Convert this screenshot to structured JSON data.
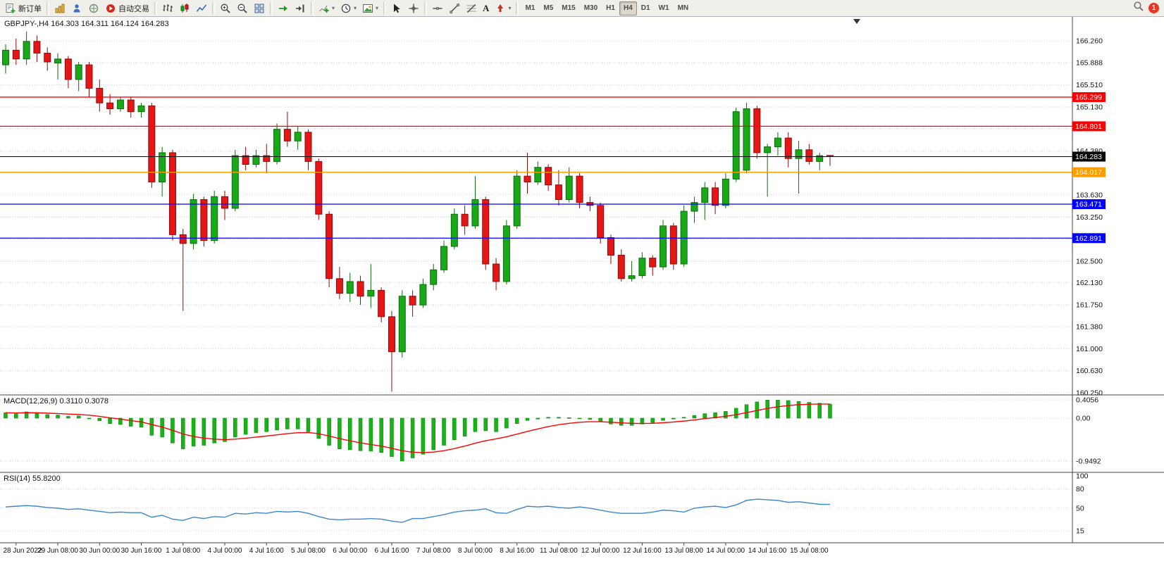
{
  "toolbar": {
    "new_order": "新订单",
    "auto_trading": "自动交易",
    "text_tool": "A",
    "timeframes": [
      "M1",
      "M5",
      "M15",
      "M30",
      "H1",
      "H4",
      "D1",
      "W1",
      "MN"
    ],
    "active_timeframe": "H4",
    "notification_count": "1"
  },
  "chart": {
    "title": "GBPJPY-,H4 164.303 164.311 164.124 164.283",
    "symbol": "GBPJPY-",
    "period": "H4",
    "open": "164.303",
    "high": "164.311",
    "low": "164.124",
    "close": "164.283"
  },
  "macd": {
    "label": "MACD(12,26,9) 0.3110 0.3078",
    "scale": [
      "0.4056",
      "0.00",
      "-0.9492"
    ]
  },
  "rsi": {
    "label": "RSI(14) 55.8200",
    "scale": [
      "100",
      "80",
      "50",
      "15"
    ]
  },
  "price_scale": [
    "166.260",
    "165.888",
    "165.510",
    "165.130",
    "164.760",
    "164.380",
    "164.000",
    "163.630",
    "163.250",
    "162.880",
    "162.500",
    "162.130",
    "161.750",
    "161.380",
    "161.000",
    "160.630",
    "160.250"
  ],
  "hlines": [
    {
      "price": "165.299",
      "color": "#ff0000"
    },
    {
      "price": "164.801",
      "color": "#ff0000"
    },
    {
      "price": "164.283",
      "color": "#000000"
    },
    {
      "price": "164.017",
      "color": "#ff9d00"
    },
    {
      "price": "163.471",
      "color": "#0000ff"
    },
    {
      "price": "162.891",
      "color": "#0000ff"
    }
  ],
  "time_axis": [
    "28 Jun 2022",
    "29 Jun 08:00",
    "30 Jun 00:00",
    "30 Jun 16:00",
    "1 Jul 08:00",
    "4 Jul 00:00",
    "4 Jul 16:00",
    "5 Jul 08:00",
    "6 Jul 00:00",
    "6 Jul 16:00",
    "7 Jul 08:00",
    "8 Jul 00:00",
    "8 Jul 16:00",
    "11 Jul 08:00",
    "12 Jul 00:00",
    "12 Jul 16:00",
    "13 Jul 08:00",
    "14 Jul 00:00",
    "14 Jul 16:00",
    "15 Jul 08:00"
  ],
  "colors": {
    "bull": "#18a818",
    "bull_border": "#0b6e0b",
    "bear": "#e41616",
    "bear_border": "#8f0a0a",
    "macd_hist": "#17b317",
    "macd_hist_border": "#0a7a0a",
    "macd_signal": "#ff0000",
    "rsi_line": "#3e86ca",
    "grid": "#cfcfcf",
    "axis": "#444444",
    "scale_text": "#111111",
    "badge": "#e8351f"
  },
  "chart_data": {
    "type": "candlestick",
    "title": "GBPJPY- H4",
    "y_range": [
      160.25,
      166.26
    ],
    "candles_ohlc": [
      [
        165.85,
        166.2,
        165.7,
        166.1
      ],
      [
        166.1,
        166.3,
        165.85,
        165.95
      ],
      [
        165.95,
        166.42,
        165.85,
        166.25
      ],
      [
        166.25,
        166.35,
        165.9,
        166.05
      ],
      [
        166.05,
        166.15,
        165.75,
        165.9
      ],
      [
        165.88,
        166.05,
        165.6,
        165.95
      ],
      [
        165.95,
        166.0,
        165.45,
        165.6
      ],
      [
        165.6,
        165.9,
        165.4,
        165.85
      ],
      [
        165.85,
        165.9,
        165.3,
        165.45
      ],
      [
        165.45,
        165.6,
        165.05,
        165.2
      ],
      [
        165.2,
        165.35,
        165.0,
        165.1
      ],
      [
        165.1,
        165.3,
        165.05,
        165.25
      ],
      [
        165.25,
        165.3,
        164.95,
        165.05
      ],
      [
        165.05,
        165.2,
        164.95,
        165.15
      ],
      [
        165.15,
        165.2,
        163.75,
        163.85
      ],
      [
        163.85,
        164.45,
        163.6,
        164.35
      ],
      [
        164.35,
        164.4,
        162.85,
        162.95
      ],
      [
        162.95,
        163.05,
        161.65,
        162.8
      ],
      [
        162.8,
        163.65,
        162.7,
        163.55
      ],
      [
        163.55,
        163.6,
        162.75,
        162.85
      ],
      [
        162.85,
        163.7,
        162.8,
        163.6
      ],
      [
        163.6,
        163.7,
        163.2,
        163.4
      ],
      [
        163.4,
        164.4,
        163.35,
        164.3
      ],
      [
        164.3,
        164.45,
        164.05,
        164.15
      ],
      [
        164.15,
        164.4,
        164.1,
        164.3
      ],
      [
        164.3,
        164.5,
        164.0,
        164.2
      ],
      [
        164.2,
        164.85,
        164.15,
        164.75
      ],
      [
        164.75,
        165.05,
        164.45,
        164.55
      ],
      [
        164.55,
        164.8,
        164.4,
        164.7
      ],
      [
        164.7,
        164.75,
        164.05,
        164.2
      ],
      [
        164.2,
        164.25,
        163.2,
        163.3
      ],
      [
        163.3,
        163.35,
        162.05,
        162.2
      ],
      [
        162.2,
        162.4,
        161.85,
        161.95
      ],
      [
        161.95,
        162.3,
        161.8,
        162.15
      ],
      [
        162.15,
        162.25,
        161.75,
        161.9
      ],
      [
        161.9,
        162.45,
        161.7,
        162.0
      ],
      [
        162.0,
        162.05,
        161.45,
        161.55
      ],
      [
        161.55,
        161.65,
        160.27,
        160.95
      ],
      [
        160.95,
        162.0,
        160.85,
        161.9
      ],
      [
        161.9,
        162.0,
        161.55,
        161.75
      ],
      [
        161.75,
        162.2,
        161.7,
        162.1
      ],
      [
        162.1,
        162.45,
        162.0,
        162.35
      ],
      [
        162.35,
        162.85,
        162.3,
        162.75
      ],
      [
        162.75,
        163.4,
        162.7,
        163.3
      ],
      [
        163.3,
        163.45,
        162.95,
        163.1
      ],
      [
        163.1,
        163.95,
        163.05,
        163.55
      ],
      [
        163.55,
        163.6,
        162.35,
        162.45
      ],
      [
        162.45,
        162.55,
        162.0,
        162.15
      ],
      [
        162.15,
        163.2,
        162.1,
        163.1
      ],
      [
        163.1,
        164.05,
        163.05,
        163.95
      ],
      [
        163.95,
        164.35,
        163.65,
        163.85
      ],
      [
        163.85,
        164.2,
        163.8,
        164.1
      ],
      [
        164.1,
        164.15,
        163.7,
        163.8
      ],
      [
        163.8,
        164.05,
        163.45,
        163.55
      ],
      [
        163.55,
        164.1,
        163.5,
        163.95
      ],
      [
        163.95,
        164.0,
        163.4,
        163.5
      ],
      [
        163.5,
        163.6,
        163.35,
        163.45
      ],
      [
        163.45,
        163.5,
        162.8,
        162.9
      ],
      [
        162.9,
        162.95,
        162.45,
        162.6
      ],
      [
        162.6,
        162.7,
        162.15,
        162.2
      ],
      [
        162.2,
        162.5,
        162.15,
        162.25
      ],
      [
        162.25,
        162.65,
        162.2,
        162.55
      ],
      [
        162.55,
        162.6,
        162.25,
        162.4
      ],
      [
        162.4,
        163.2,
        162.35,
        163.1
      ],
      [
        163.1,
        163.15,
        162.35,
        162.45
      ],
      [
        162.45,
        163.45,
        162.4,
        163.35
      ],
      [
        163.35,
        163.6,
        163.15,
        163.5
      ],
      [
        163.5,
        163.85,
        163.2,
        163.75
      ],
      [
        163.75,
        163.85,
        163.3,
        163.45
      ],
      [
        163.45,
        164.0,
        163.4,
        163.9
      ],
      [
        163.9,
        165.12,
        163.85,
        165.05
      ],
      [
        164.05,
        165.2,
        164.0,
        165.1
      ],
      [
        165.1,
        165.15,
        164.25,
        164.35
      ],
      [
        164.35,
        164.5,
        163.6,
        164.45
      ],
      [
        164.45,
        164.7,
        164.3,
        164.6
      ],
      [
        164.6,
        164.7,
        164.1,
        164.25
      ],
      [
        164.25,
        164.55,
        163.65,
        164.4
      ],
      [
        164.4,
        164.5,
        164.15,
        164.2
      ],
      [
        164.2,
        164.35,
        164.05,
        164.3
      ],
      [
        164.303,
        164.311,
        164.124,
        164.283
      ]
    ],
    "macd_hist": [
      0.12,
      0.1,
      0.14,
      0.11,
      0.08,
      0.07,
      0.04,
      0.05,
      0.0,
      -0.06,
      -0.12,
      -0.14,
      -0.18,
      -0.2,
      -0.38,
      -0.42,
      -0.55,
      -0.68,
      -0.62,
      -0.6,
      -0.55,
      -0.52,
      -0.42,
      -0.36,
      -0.32,
      -0.3,
      -0.26,
      -0.24,
      -0.24,
      -0.3,
      -0.45,
      -0.6,
      -0.68,
      -0.7,
      -0.72,
      -0.73,
      -0.76,
      -0.85,
      -0.95,
      -0.88,
      -0.8,
      -0.7,
      -0.6,
      -0.48,
      -0.4,
      -0.3,
      -0.28,
      -0.3,
      -0.22,
      -0.12,
      -0.05,
      -0.02,
      0.02,
      0.02,
      0.01,
      0.0,
      -0.03,
      -0.08,
      -0.13,
      -0.16,
      -0.16,
      -0.13,
      -0.1,
      -0.05,
      -0.02,
      0.02,
      0.06,
      0.1,
      0.12,
      0.15,
      0.22,
      0.3,
      0.36,
      0.4,
      0.4,
      0.39,
      0.37,
      0.35,
      0.33,
      0.311
    ],
    "rsi_values": [
      52,
      53,
      54,
      53,
      51,
      50,
      48,
      49,
      47,
      45,
      43,
      44,
      43,
      43,
      36,
      39,
      33,
      31,
      36,
      34,
      37,
      36,
      42,
      41,
      43,
      42,
      45,
      44,
      45,
      42,
      37,
      33,
      32,
      33,
      33,
      34,
      33,
      30,
      28,
      34,
      34,
      37,
      40,
      44,
      46,
      47,
      49,
      43,
      42,
      48,
      53,
      52,
      53,
      51,
      50,
      52,
      50,
      47,
      44,
      42,
      42,
      42,
      44,
      47,
      46,
      44,
      50,
      52,
      53,
      51,
      55,
      62,
      64,
      63,
      62,
      59,
      60,
      58,
      56,
      55.82
    ]
  }
}
